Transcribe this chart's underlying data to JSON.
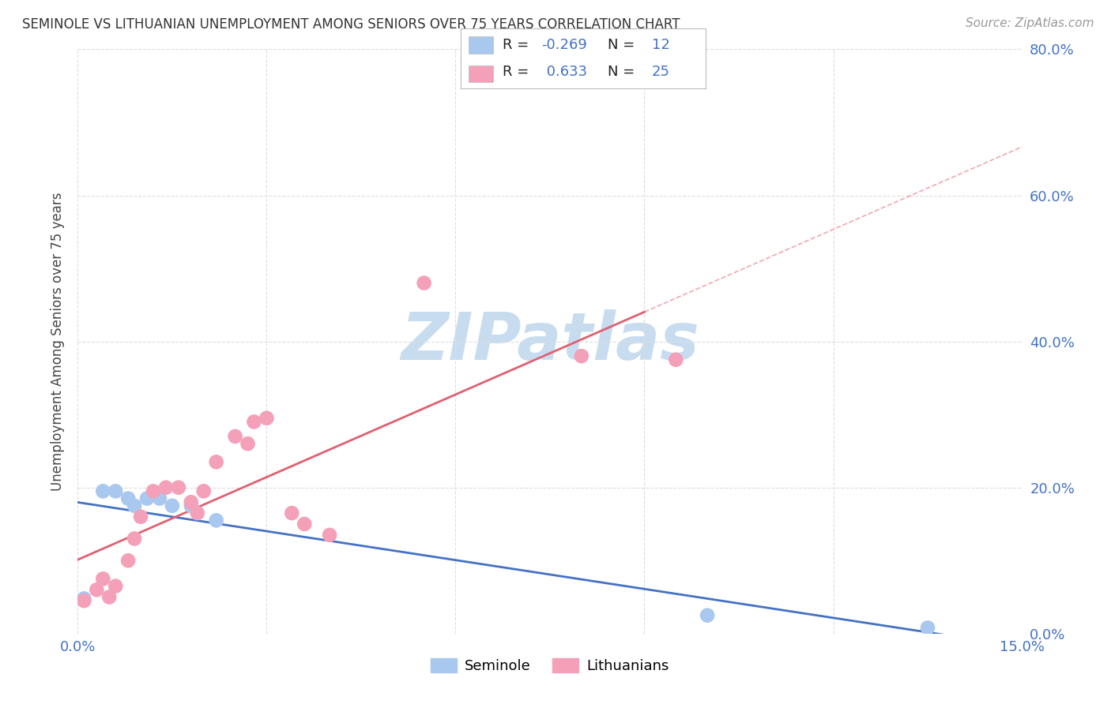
{
  "title": "SEMINOLE VS LITHUANIAN UNEMPLOYMENT AMONG SENIORS OVER 75 YEARS CORRELATION CHART",
  "source": "Source: ZipAtlas.com",
  "ylabel": "Unemployment Among Seniors over 75 years",
  "xlim": [
    0.0,
    0.15
  ],
  "ylim": [
    0.0,
    0.8
  ],
  "yticks": [
    0.0,
    0.2,
    0.4,
    0.6,
    0.8
  ],
  "seminole_color": "#A8C8F0",
  "lithuanian_color": "#F4A0B8",
  "seminole_line_color": "#4472C4",
  "lithuanian_line_color": "#E06070",
  "seminole_R": -0.269,
  "seminole_N": 12,
  "lithuanian_R": 0.633,
  "lithuanian_N": 25,
  "seminole_x": [
    0.001,
    0.004,
    0.006,
    0.008,
    0.009,
    0.011,
    0.013,
    0.015,
    0.018,
    0.022,
    0.1,
    0.135
  ],
  "seminole_y": [
    0.048,
    0.195,
    0.195,
    0.185,
    0.175,
    0.185,
    0.185,
    0.175,
    0.175,
    0.155,
    0.025,
    0.008
  ],
  "lithuanian_x": [
    0.001,
    0.003,
    0.004,
    0.005,
    0.006,
    0.008,
    0.009,
    0.01,
    0.012,
    0.014,
    0.016,
    0.018,
    0.019,
    0.02,
    0.022,
    0.025,
    0.027,
    0.028,
    0.03,
    0.034,
    0.036,
    0.04,
    0.055,
    0.08,
    0.095
  ],
  "lithuanian_y": [
    0.045,
    0.06,
    0.075,
    0.05,
    0.065,
    0.1,
    0.13,
    0.16,
    0.195,
    0.2,
    0.2,
    0.18,
    0.165,
    0.195,
    0.235,
    0.27,
    0.26,
    0.29,
    0.295,
    0.165,
    0.15,
    0.135,
    0.48,
    0.38,
    0.375
  ],
  "grid_color": "#DDDDDD",
  "background_color": "#FFFFFF",
  "watermark_text": "ZIPatlas",
  "watermark_color": "#C8DCF0"
}
